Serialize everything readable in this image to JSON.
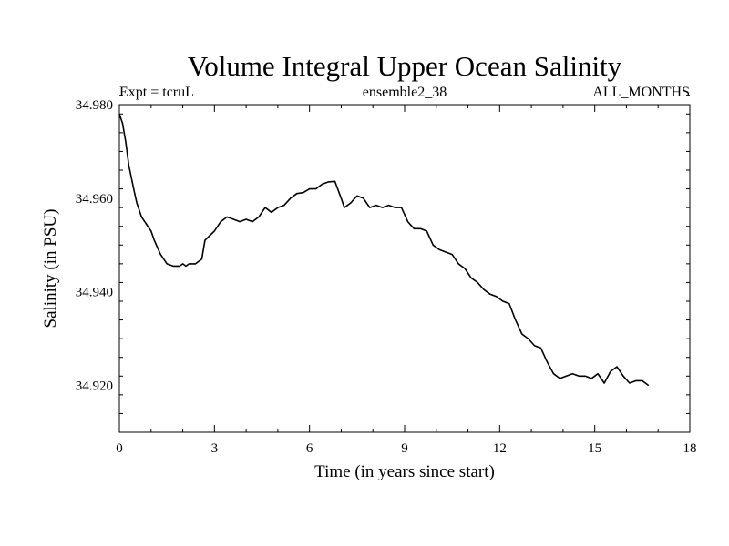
{
  "chart_data": {
    "type": "line",
    "title": "Volume Integral Upper Ocean Salinity",
    "subtitle_left": "Expt = tcruL",
    "subtitle_center": "ensemble2_38",
    "subtitle_right": "ALL_MONTHS",
    "xlabel": "Time (in years since start)",
    "ylabel": "Salinity (in PSU)",
    "xlim": [
      0,
      18
    ],
    "ylim": [
      34.91,
      34.98
    ],
    "x_ticks": [
      0,
      3,
      6,
      9,
      12,
      15,
      18
    ],
    "x_tick_labels": [
      "0",
      "3",
      "6",
      "9",
      "12",
      "15",
      "18"
    ],
    "y_ticks": [
      34.92,
      34.94,
      34.96,
      34.98
    ],
    "y_tick_labels": [
      "34.920",
      "34.940",
      "34.960",
      "34.980"
    ],
    "grid": false,
    "series": [
      {
        "name": "salinity",
        "x": [
          0.0,
          0.1,
          0.2,
          0.3,
          0.45,
          0.55,
          0.7,
          0.8,
          1.0,
          1.1,
          1.3,
          1.4,
          1.5,
          1.7,
          1.9,
          2.0,
          2.1,
          2.2,
          2.4,
          2.6,
          2.7,
          2.85,
          3.0,
          3.1,
          3.2,
          3.4,
          3.6,
          3.8,
          4.0,
          4.2,
          4.4,
          4.6,
          4.8,
          5.0,
          5.2,
          5.4,
          5.6,
          5.8,
          6.0,
          6.2,
          6.4,
          6.6,
          6.8,
          7.0,
          7.1,
          7.3,
          7.5,
          7.7,
          7.9,
          8.1,
          8.3,
          8.5,
          8.7,
          8.9,
          9.1,
          9.3,
          9.5,
          9.7,
          9.9,
          10.1,
          10.3,
          10.5,
          10.7,
          10.9,
          11.1,
          11.3,
          11.5,
          11.7,
          11.9,
          12.1,
          12.3,
          12.5,
          12.7,
          12.9,
          13.1,
          13.3,
          13.5,
          13.7,
          13.9,
          14.1,
          14.3,
          14.5,
          14.7,
          14.9,
          15.1,
          15.3,
          15.5,
          15.7,
          15.9,
          16.1,
          16.3,
          16.5,
          16.7
        ],
        "values": [
          34.978,
          34.976,
          34.972,
          34.967,
          34.962,
          34.959,
          34.956,
          34.955,
          34.953,
          34.951,
          34.948,
          34.947,
          34.946,
          34.9455,
          34.9455,
          34.946,
          34.9455,
          34.946,
          34.946,
          34.947,
          34.951,
          34.952,
          34.953,
          34.954,
          34.955,
          34.956,
          34.9555,
          34.955,
          34.9555,
          34.955,
          34.956,
          34.958,
          34.957,
          34.958,
          34.9585,
          34.96,
          34.961,
          34.9612,
          34.962,
          34.962,
          34.963,
          34.9635,
          34.9636,
          34.96,
          34.958,
          34.959,
          34.9605,
          34.96,
          34.958,
          34.9585,
          34.958,
          34.9585,
          34.958,
          34.958,
          34.955,
          34.9535,
          34.9535,
          34.953,
          34.95,
          34.949,
          34.9485,
          34.948,
          34.946,
          34.945,
          34.943,
          34.942,
          34.9405,
          34.9395,
          34.939,
          34.938,
          34.9375,
          34.934,
          34.931,
          34.93,
          34.9285,
          34.928,
          34.925,
          34.9225,
          34.9215,
          34.922,
          34.9225,
          34.922,
          34.922,
          34.9215,
          34.9225,
          34.9205,
          34.923,
          34.924,
          34.922,
          34.9205,
          34.921,
          34.921,
          34.92
        ]
      }
    ]
  }
}
